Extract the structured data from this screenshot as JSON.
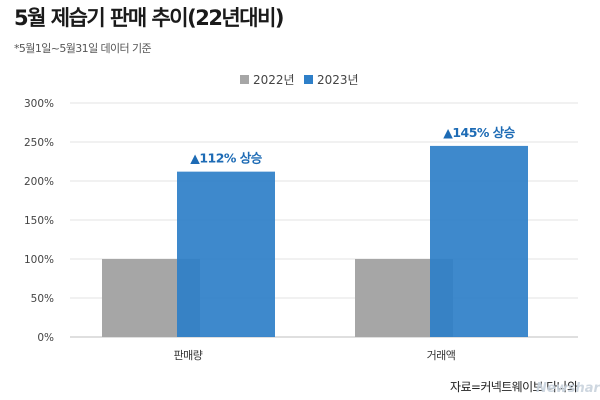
{
  "title": "5월 제습기 판매 추이(22년대비)",
  "subtitle": "*5월1일~5월31일 데이터 기준",
  "source": "자료=커넥트웨이브 다나와",
  "watermark": "Newshara",
  "colors": {
    "s2022": "#a6a6a6",
    "s2023": "#2e7fc8",
    "annotation": "#1d6bb5",
    "grid": "#e3e3e3"
  },
  "chart_data": {
    "type": "bar",
    "categories": [
      "판매량",
      "거래액"
    ],
    "series": [
      {
        "name": "2022년",
        "values": [
          100,
          100
        ]
      },
      {
        "name": "2023년",
        "values": [
          212,
          245
        ]
      }
    ],
    "annotations": [
      "▲112% 상승",
      "▲145% 상승"
    ],
    "ylim": [
      0,
      300
    ],
    "yticks": [
      "0%",
      "50%",
      "100%",
      "150%",
      "200%",
      "250%",
      "300%"
    ],
    "ytick_values": [
      0,
      50,
      100,
      150,
      200,
      250,
      300
    ],
    "grid": true,
    "legend": "top-center",
    "xlabel": "",
    "ylabel": ""
  }
}
